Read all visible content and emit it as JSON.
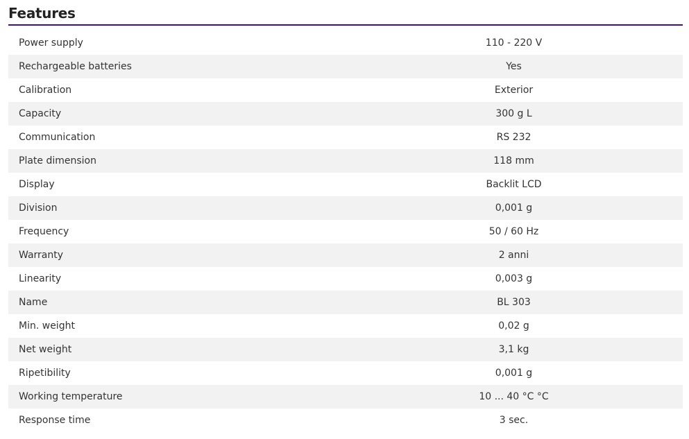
{
  "title": "Features",
  "accent": "#3d0c9e",
  "rows": [
    {
      "label": "Power supply",
      "value": "110 - 220 V"
    },
    {
      "label": "Rechargeable batteries",
      "value": "Yes"
    },
    {
      "label": "Calibration",
      "value": "Exterior"
    },
    {
      "label": "Capacity",
      "value": "300 g L"
    },
    {
      "label": "Communication",
      "value": "RS 232"
    },
    {
      "label": "Plate dimension",
      "value": "118 mm"
    },
    {
      "label": "Display",
      "value": "Backlit LCD"
    },
    {
      "label": "Division",
      "value": "0,001 g"
    },
    {
      "label": "Frequency",
      "value": "50 / 60 Hz"
    },
    {
      "label": "Warranty",
      "value": "2 anni"
    },
    {
      "label": "Linearity",
      "value": "0,003 g"
    },
    {
      "label": "Name",
      "value": "BL 303"
    },
    {
      "label": "Min. weight",
      "value": "0,02 g"
    },
    {
      "label": "Net weight",
      "value": "3,1 kg"
    },
    {
      "label": "Ripetibility",
      "value": "0,001 g"
    },
    {
      "label": "Working temperature",
      "value": "10 ... 40 °C °C"
    },
    {
      "label": "Response time",
      "value": "3 sec."
    }
  ]
}
